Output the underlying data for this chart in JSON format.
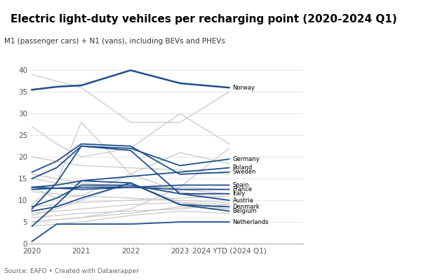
{
  "title": "Electric light-duty vehilces per recharging point (2020-2024 Q1)",
  "subtitle": "M1 (passenger cars) + N1 (vans), including BEVs and PHEVs",
  "source": "Source: EAFO • Created with Datawrapper",
  "x_tick_labels": [
    "2020",
    "2021",
    "2022",
    "2023",
    "2024 YTD (2024 Q1)"
  ],
  "x_tick_positions": [
    0,
    1,
    2,
    3,
    4
  ],
  "x_values": [
    0,
    0.5,
    1,
    2,
    3,
    4
  ],
  "ylim": [
    0,
    42
  ],
  "yticks": [
    0,
    5,
    10,
    15,
    20,
    25,
    30,
    35,
    40
  ],
  "highlighted_color": "#1f4e8c",
  "grey_color": "#c8c8c8",
  "highlighted_countries": {
    "Norway": [
      35.5,
      36.2,
      36.5,
      40.0,
      37.0,
      36.0
    ],
    "Germany": [
      8.0,
      14.0,
      22.5,
      22.0,
      18.0,
      19.5
    ],
    "Poland": [
      13.0,
      13.5,
      14.5,
      15.5,
      16.5,
      17.5
    ],
    "Sweden": [
      16.5,
      19.0,
      23.0,
      22.5,
      16.0,
      16.5
    ],
    "Spain": [
      12.5,
      12.8,
      13.0,
      13.0,
      13.5,
      13.5
    ],
    "France": [
      13.0,
      12.8,
      12.5,
      13.0,
      12.5,
      12.5
    ],
    "Italy": [
      8.5,
      10.5,
      13.5,
      13.5,
      11.5,
      11.5
    ],
    "Austria": [
      15.0,
      17.5,
      22.5,
      21.5,
      11.5,
      10.0
    ],
    "Denmark": [
      7.5,
      8.5,
      10.5,
      14.0,
      9.0,
      8.5
    ],
    "Belgium": [
      4.0,
      9.0,
      14.5,
      14.0,
      9.0,
      7.5
    ],
    "Netherlands": [
      0.5,
      4.5,
      4.5,
      4.5,
      5.0,
      5.0
    ]
  },
  "grey_countries": [
    [
      39.0,
      37.5,
      36.0,
      28.0,
      28.0,
      35.0
    ],
    [
      27.0,
      23.0,
      20.0,
      22.0,
      30.0,
      23.0
    ],
    [
      5.0,
      5.5,
      6.0,
      8.0,
      13.0,
      22.0
    ],
    [
      13.0,
      10.5,
      11.0,
      16.0,
      21.0,
      18.5
    ],
    [
      6.0,
      6.5,
      7.0,
      7.5,
      8.0,
      9.0
    ],
    [
      9.0,
      14.0,
      28.0,
      16.0,
      12.0,
      10.0
    ],
    [
      8.5,
      9.0,
      9.5,
      10.0,
      10.5,
      11.0
    ],
    [
      5.0,
      5.5,
      6.0,
      7.0,
      8.5,
      8.0
    ],
    [
      15.0,
      14.0,
      13.5,
      13.0,
      13.0,
      12.5
    ],
    [
      12.0,
      11.5,
      11.0,
      10.5,
      10.0,
      9.5
    ],
    [
      7.0,
      7.5,
      8.0,
      9.0,
      9.5,
      9.0
    ],
    [
      20.0,
      19.0,
      18.0,
      17.5,
      17.0,
      16.0
    ],
    [
      6.5,
      8.0,
      10.0,
      14.0,
      9.5,
      8.0
    ],
    [
      4.0,
      4.5,
      5.0,
      6.5,
      7.5,
      7.0
    ],
    [
      16.0,
      15.0,
      14.0,
      13.0,
      12.5,
      11.5
    ]
  ],
  "dpi": 100,
  "figsize": [
    6.0,
    4.0
  ]
}
